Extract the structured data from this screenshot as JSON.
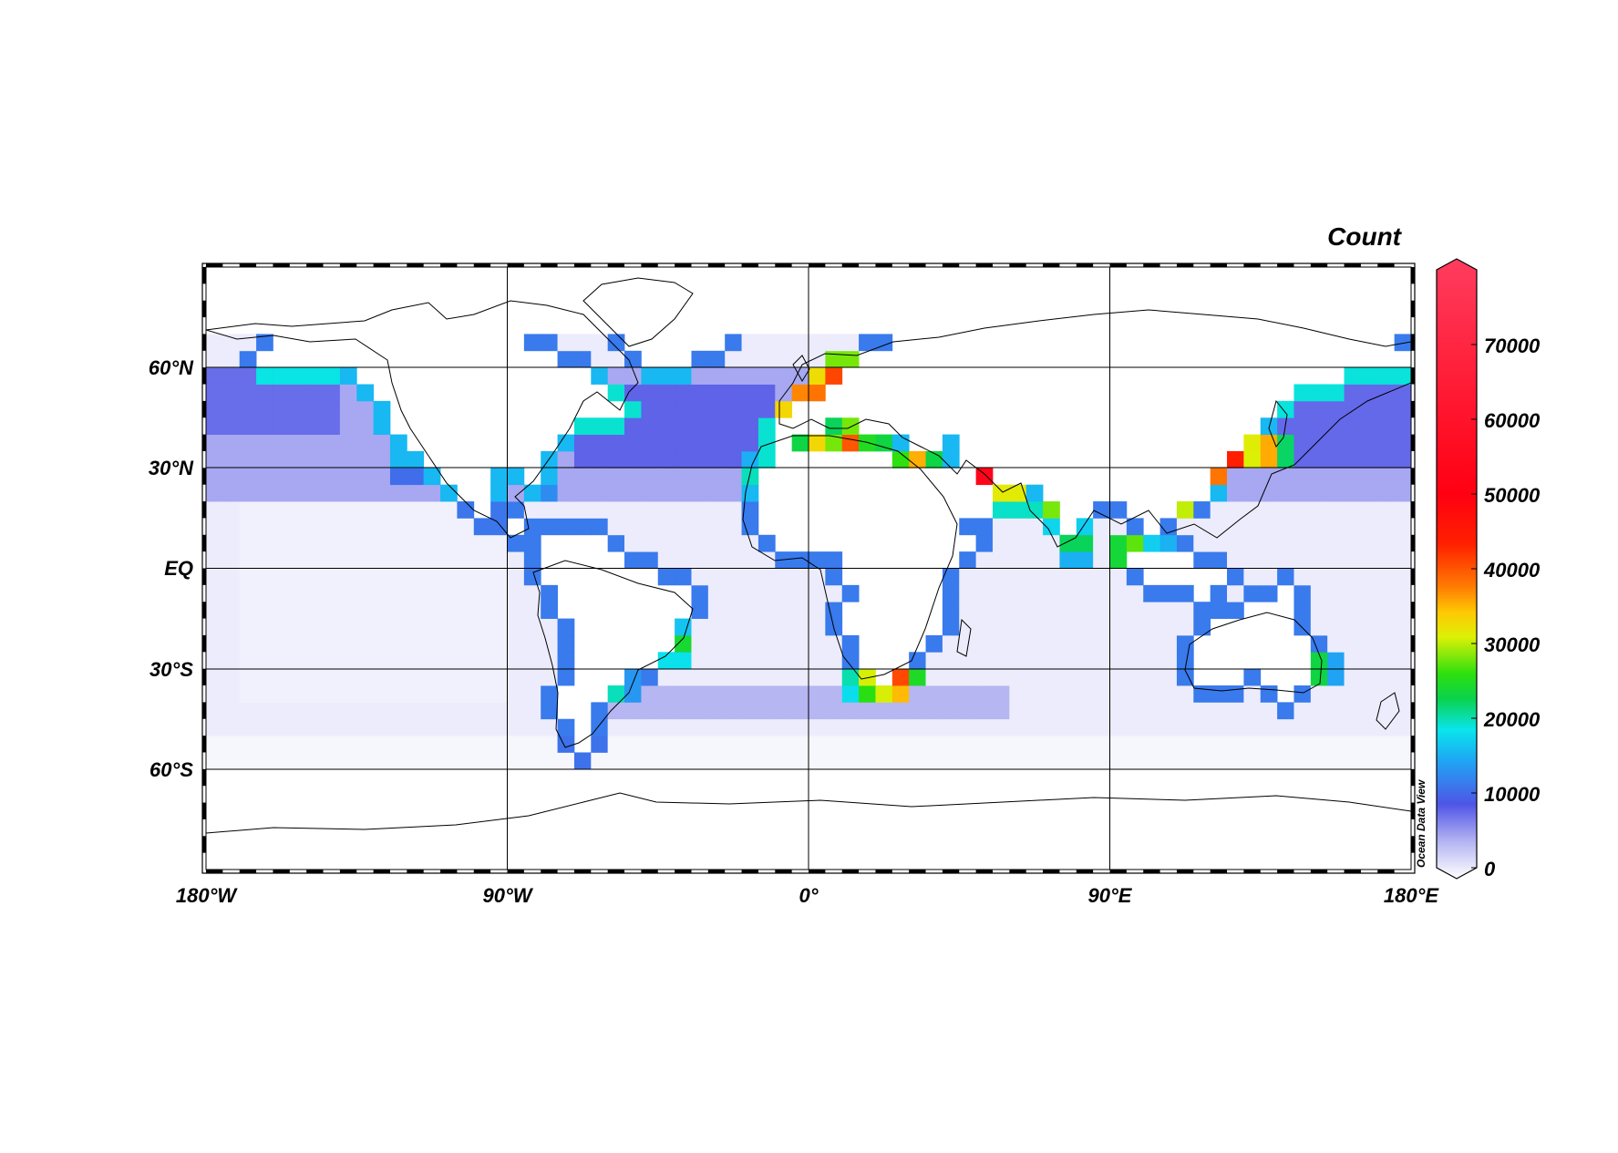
{
  "chart_data": {
    "type": "heatmap",
    "title": "",
    "colorbar": {
      "title": "Count",
      "ticks": [
        "0",
        "10000",
        "20000",
        "30000",
        "40000",
        "50000",
        "60000",
        "70000"
      ],
      "range": [
        0,
        80000
      ]
    },
    "x_ticks": [
      "180°W",
      "90°W",
      "0°",
      "90°E",
      "180°E"
    ],
    "y_ticks": [
      "60°N",
      "30°N",
      "EQ",
      "30°S",
      "60°S"
    ],
    "lon_range": [
      -180,
      180
    ],
    "lat_range": [
      -90,
      90
    ],
    "credit": "Ocean Data View",
    "cell_deg": 5,
    "hotspots": [
      {
        "lon": -2,
        "lat": 48,
        "count": 55000
      },
      {
        "lon": 4,
        "lat": 54,
        "count": 45000
      },
      {
        "lon": 10,
        "lat": 57,
        "count": 50000
      },
      {
        "lon": 2,
        "lat": 38,
        "count": 35000
      },
      {
        "lon": 12,
        "lat": 38,
        "count": 42000
      },
      {
        "lon": 20,
        "lat": 36,
        "count": 30000
      },
      {
        "lon": 32,
        "lat": 31,
        "count": 40000
      },
      {
        "lon": 52,
        "lat": 27,
        "count": 55000
      },
      {
        "lon": 60,
        "lat": 24,
        "count": 40000
      },
      {
        "lon": 72,
        "lat": 18,
        "count": 30000
      },
      {
        "lon": 80,
        "lat": 8,
        "count": 28000
      },
      {
        "lon": 96,
        "lat": 5,
        "count": 35000
      },
      {
        "lon": 104,
        "lat": 2,
        "count": 30000
      },
      {
        "lon": 112,
        "lat": 22,
        "count": 45000
      },
      {
        "lon": 120,
        "lat": 31,
        "count": 55000
      },
      {
        "lon": 126,
        "lat": 36,
        "count": 60000
      },
      {
        "lon": 136,
        "lat": 35,
        "count": 45000
      },
      {
        "lon": 26,
        "lat": -34,
        "count": 48000
      },
      {
        "lon": 18,
        "lat": -34,
        "count": 35000
      },
      {
        "lon": -40,
        "lat": -23,
        "count": 30000
      },
      {
        "lon": -58,
        "lat": -35,
        "count": 25000
      },
      {
        "lon": 151,
        "lat": -30,
        "count": 30000
      },
      {
        "lon": -120,
        "lat": 33,
        "count": 20000
      },
      {
        "lon": -80,
        "lat": 25,
        "count": 18000
      },
      {
        "lon": -74,
        "lat": 40,
        "count": 15000
      },
      {
        "lon": -15,
        "lat": 28,
        "count": 25000
      }
    ]
  }
}
